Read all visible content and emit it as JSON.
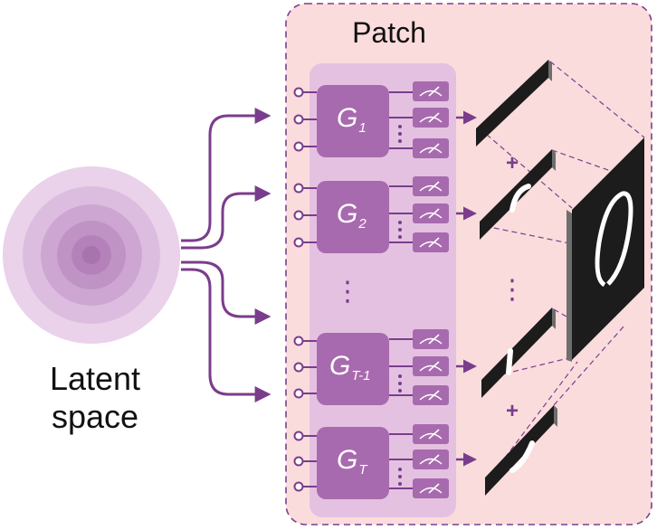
{
  "diagram": {
    "patch_title": "Patch",
    "latent_label_line1": "Latent",
    "latent_label_line2": "space",
    "generators": [
      {
        "letter": "G",
        "subscript": "1"
      },
      {
        "letter": "G",
        "subscript": "2"
      },
      {
        "letter": "G",
        "subscript": "T-1"
      },
      {
        "letter": "G",
        "subscript": "T"
      }
    ],
    "ellipsis": "⋮",
    "plus": "+",
    "colors": {
      "patch_background": "#fbdcdc",
      "patch_border": "#7b3f8f",
      "generator_panel": "#e3bfe0",
      "generator_block": "#a86aae",
      "connector": "#7a3d8c",
      "slab": "#1c1c1c"
    },
    "icons": [
      "latent-space-sphere-icon",
      "measurement-meter-icon"
    ]
  }
}
